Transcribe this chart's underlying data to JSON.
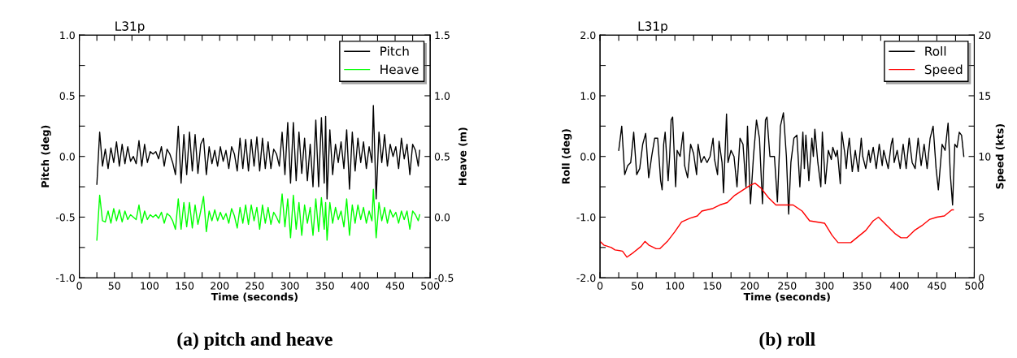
{
  "chart_data": [
    {
      "type": "line",
      "title": "L31p",
      "xlabel": "Time (seconds)",
      "ylabel": "Pitch (deg)",
      "y2label": "Heave (m)",
      "annotations": [
        "(a) pitch and heave"
      ],
      "xlim": [
        0,
        500
      ],
      "xticks": [
        0,
        {
          "value": 25,
          "label": null
        },
        50,
        {
          "value": 75,
          "label": null
        },
        100,
        {
          "value": 125,
          "label": null
        },
        150,
        {
          "value": 175,
          "label": null
        },
        200,
        {
          "value": 225,
          "label": null
        },
        250,
        {
          "value": 275,
          "label": null
        },
        300,
        {
          "value": 325,
          "label": null
        },
        350,
        {
          "value": 375,
          "label": null
        },
        400,
        {
          "value": 425,
          "label": null
        },
        450,
        {
          "value": 475,
          "label": null
        },
        500
      ],
      "ylim": [
        -1,
        1
      ],
      "yticks": [
        {
          "value": -1,
          "label": "-1.0"
        },
        {
          "value": -0.75,
          "label": null
        },
        {
          "value": -0.5,
          "label": "-0.5"
        },
        {
          "value": -0.25,
          "label": null
        },
        {
          "value": 0,
          "label": "0.0"
        },
        {
          "value": 0.25,
          "label": null
        },
        {
          "value": 0.5,
          "label": "0.5"
        },
        {
          "value": 0.75,
          "label": null
        },
        {
          "value": 1,
          "label": "1.0"
        }
      ],
      "y2lim": [
        -0.5,
        1.5
      ],
      "y2ticks": [
        {
          "value": -0.5,
          "label": "-0.5"
        },
        {
          "value": -0.25,
          "label": null
        },
        {
          "value": 0,
          "label": "0.0"
        },
        {
          "value": 0.25,
          "label": null
        },
        {
          "value": 0.5,
          "label": "0.5"
        },
        {
          "value": 0.75,
          "label": null
        },
        {
          "value": 1,
          "label": "1.0"
        },
        {
          "value": 1.25,
          "label": null
        },
        {
          "value": 1.5,
          "label": "1.5"
        }
      ],
      "legend": "top right",
      "grid": false,
      "line_style": "solid",
      "marker": "none",
      "series": [
        {
          "name": "Pitch",
          "color": "#000000",
          "x": [
            25,
            29,
            33,
            37,
            41,
            45,
            49,
            53,
            57,
            61,
            65,
            69,
            73,
            77,
            81,
            85,
            89,
            93,
            97,
            101,
            105,
            109,
            113,
            117,
            121,
            125,
            129,
            133,
            137,
            141,
            145,
            149,
            153,
            157,
            161,
            165,
            169,
            173,
            177,
            181,
            185,
            189,
            193,
            197,
            201,
            205,
            209,
            213,
            217,
            221,
            225,
            229,
            233,
            237,
            241,
            245,
            249,
            253,
            257,
            261,
            265,
            269,
            273,
            277,
            281,
            285,
            289,
            293,
            297,
            301,
            305,
            309,
            313,
            317,
            321,
            325,
            329,
            333,
            337,
            341,
            345,
            349,
            351,
            353,
            357,
            361,
            365,
            369,
            373,
            377,
            381,
            385,
            389,
            393,
            397,
            401,
            405,
            409,
            413,
            417,
            419,
            423,
            427,
            431,
            435,
            439,
            443,
            447,
            451,
            455,
            459,
            463,
            467,
            471,
            475,
            479,
            483,
            485
          ],
          "values": [
            -0.23,
            0.2,
            -0.08,
            0.06,
            -0.1,
            0.07,
            -0.05,
            0.12,
            -0.08,
            0.1,
            -0.06,
            0.08,
            -0.04,
            0.0,
            -0.06,
            0.13,
            -0.08,
            0.1,
            -0.05,
            0.04,
            0.02,
            0.04,
            -0.02,
            0.08,
            -0.08,
            0.06,
            0.02,
            -0.05,
            -0.15,
            0.25,
            -0.22,
            0.18,
            -0.15,
            0.2,
            -0.12,
            0.18,
            -0.14,
            0.1,
            0.15,
            -0.15,
            0.08,
            -0.06,
            0.05,
            -0.08,
            0.08,
            -0.04,
            0.05,
            -0.1,
            0.08,
            0.02,
            -0.12,
            0.15,
            -0.1,
            0.14,
            -0.12,
            0.14,
            -0.08,
            0.16,
            -0.12,
            0.15,
            -0.1,
            0.12,
            -0.1,
            0.06,
            0.02,
            -0.08,
            0.2,
            -0.15,
            0.28,
            -0.22,
            0.28,
            -0.2,
            0.2,
            -0.14,
            0.15,
            -0.2,
            0.1,
            -0.25,
            0.3,
            -0.25,
            0.32,
            -0.22,
            0.33,
            -0.35,
            0.22,
            -0.15,
            0.1,
            -0.05,
            0.12,
            -0.1,
            0.22,
            -0.27,
            0.2,
            -0.12,
            0.15,
            -0.05,
            0.12,
            -0.1,
            0.08,
            -0.05,
            0.42,
            -0.35,
            0.2,
            -0.05,
            0.18,
            -0.08,
            0.1,
            0.0,
            0.08,
            -0.1,
            0.15,
            -0.02,
            0.1,
            -0.15,
            0.1,
            0.05,
            -0.08,
            0.05
          ]
        },
        {
          "name": "Heave",
          "color": "#00ff00",
          "axis": "y2",
          "x": [
            25,
            29,
            33,
            37,
            41,
            45,
            49,
            53,
            57,
            61,
            65,
            69,
            73,
            77,
            81,
            85,
            89,
            93,
            97,
            101,
            105,
            109,
            113,
            117,
            121,
            125,
            129,
            133,
            137,
            141,
            145,
            149,
            153,
            157,
            161,
            165,
            169,
            173,
            177,
            181,
            185,
            189,
            193,
            197,
            201,
            205,
            209,
            213,
            217,
            221,
            225,
            229,
            233,
            237,
            241,
            245,
            249,
            253,
            257,
            261,
            265,
            269,
            273,
            277,
            281,
            285,
            289,
            293,
            297,
            301,
            305,
            309,
            313,
            317,
            321,
            325,
            329,
            333,
            337,
            341,
            345,
            349,
            351,
            353,
            357,
            361,
            365,
            369,
            373,
            377,
            381,
            385,
            389,
            393,
            397,
            401,
            405,
            409,
            413,
            417,
            419,
            423,
            427,
            431,
            435,
            439,
            443,
            447,
            451,
            455,
            459,
            463,
            467,
            471,
            475,
            479,
            483,
            485
          ],
          "values": [
            -0.19,
            0.18,
            -0.03,
            -0.04,
            0.05,
            -0.05,
            0.07,
            -0.03,
            0.06,
            -0.04,
            0.05,
            -0.02,
            0.02,
            0.0,
            -0.02,
            0.1,
            -0.05,
            0.05,
            -0.02,
            0.02,
            0.0,
            0.02,
            -0.01,
            0.04,
            -0.05,
            0.03,
            0.01,
            -0.03,
            -0.1,
            0.15,
            -0.1,
            0.12,
            -0.08,
            0.12,
            -0.09,
            0.1,
            -0.06,
            0.05,
            0.17,
            -0.12,
            0.05,
            -0.03,
            0.06,
            -0.03,
            0.04,
            -0.02,
            0.03,
            -0.05,
            0.07,
            0.01,
            -0.09,
            0.08,
            -0.05,
            0.1,
            -0.06,
            0.1,
            -0.03,
            0.08,
            -0.1,
            0.1,
            -0.05,
            0.08,
            -0.06,
            0.04,
            0.0,
            -0.05,
            0.19,
            -0.08,
            0.15,
            -0.17,
            0.18,
            -0.1,
            0.12,
            -0.15,
            0.1,
            -0.05,
            0.08,
            -0.15,
            0.15,
            -0.12,
            0.16,
            -0.1,
            0.12,
            -0.19,
            0.12,
            -0.05,
            0.08,
            -0.02,
            0.05,
            -0.08,
            0.15,
            -0.15,
            0.1,
            -0.05,
            0.1,
            -0.02,
            0.08,
            -0.05,
            0.05,
            -0.03,
            0.23,
            -0.17,
            0.12,
            -0.03,
            0.08,
            -0.05,
            0.06,
            0.0,
            0.04,
            -0.05,
            0.05,
            -0.02,
            0.05,
            -0.1,
            0.05,
            0.02,
            -0.03,
            0.02
          ]
        }
      ]
    },
    {
      "type": "line",
      "title": "L31p",
      "xlabel": "Time (seconds)",
      "ylabel": "Roll (deg)",
      "y2label": "Speed (kts)",
      "annotations": [
        "(b) roll"
      ],
      "xlim": [
        0,
        500
      ],
      "xticks": [
        0,
        {
          "value": 25,
          "label": null
        },
        50,
        {
          "value": 75,
          "label": null
        },
        100,
        {
          "value": 125,
          "label": null
        },
        150,
        {
          "value": 175,
          "label": null
        },
        200,
        {
          "value": 225,
          "label": null
        },
        250,
        {
          "value": 275,
          "label": null
        },
        300,
        {
          "value": 325,
          "label": null
        },
        350,
        {
          "value": 375,
          "label": null
        },
        400,
        {
          "value": 425,
          "label": null
        },
        450,
        {
          "value": 475,
          "label": null
        },
        500
      ],
      "ylim": [
        -2,
        2
      ],
      "yticks": [
        {
          "value": -2,
          "label": "-2.0"
        },
        {
          "value": -1.5,
          "label": null
        },
        {
          "value": -1,
          "label": "-1.0"
        },
        {
          "value": -0.5,
          "label": null
        },
        {
          "value": 0,
          "label": "0.0"
        },
        {
          "value": 0.5,
          "label": null
        },
        {
          "value": 1,
          "label": "1.0"
        },
        {
          "value": 1.5,
          "label": null
        },
        {
          "value": 2,
          "label": "2.0"
        }
      ],
      "y2lim": [
        0,
        20
      ],
      "y2ticks": [
        0,
        {
          "value": 2.5,
          "label": null
        },
        5,
        {
          "value": 7.5,
          "label": null
        },
        10,
        {
          "value": 12.5,
          "label": null
        },
        15,
        {
          "value": 17.5,
          "label": null
        },
        20
      ],
      "legend": "top right",
      "grid": false,
      "line_style": "solid",
      "marker": "none",
      "series": [
        {
          "name": "Roll",
          "color": "#000000",
          "x": [
            25,
            29,
            33,
            37,
            41,
            45,
            49,
            53,
            57,
            61,
            65,
            69,
            73,
            77,
            81,
            83,
            85,
            87,
            91,
            93,
            95,
            97,
            101,
            103,
            107,
            111,
            113,
            117,
            121,
            125,
            129,
            131,
            135,
            139,
            143,
            147,
            151,
            153,
            157,
            159,
            163,
            165,
            169,
            171,
            175,
            179,
            183,
            187,
            191,
            195,
            197,
            201,
            205,
            209,
            213,
            217,
            221,
            223,
            227,
            233,
            237,
            241,
            245,
            249,
            252,
            255,
            259,
            263,
            267,
            271,
            273,
            275,
            279,
            283,
            285,
            287,
            291,
            295,
            297,
            301,
            305,
            309,
            311,
            315,
            317,
            321,
            323,
            327,
            329,
            331,
            333,
            337,
            341,
            345,
            349,
            351,
            355,
            359,
            361,
            365,
            369,
            373,
            377,
            379,
            381,
            385,
            389,
            391,
            393,
            397,
            401,
            405,
            409,
            413,
            417,
            421,
            425,
            429,
            433,
            437,
            441,
            445,
            449,
            452,
            457,
            461,
            465,
            468,
            471,
            474,
            477,
            480,
            483,
            486
          ],
          "values": [
            0.1,
            0.5,
            -0.3,
            -0.15,
            -0.1,
            0.4,
            -0.3,
            -0.2,
            0.2,
            0.38,
            -0.35,
            0.0,
            0.3,
            0.3,
            -0.4,
            -0.55,
            0.2,
            0.4,
            -0.4,
            0.0,
            0.6,
            0.65,
            -0.5,
            0.1,
            0.0,
            0.4,
            -0.15,
            -0.35,
            0.2,
            0.05,
            -0.3,
            0.2,
            -0.1,
            0.0,
            -0.1,
            0.0,
            0.3,
            -0.05,
            -0.3,
            0.25,
            -0.1,
            -0.6,
            0.7,
            -0.1,
            0.1,
            0.0,
            -0.5,
            0.3,
            0.2,
            -0.5,
            0.5,
            -0.78,
            0.0,
            0.6,
            0.3,
            -0.78,
            0.6,
            0.65,
            0.0,
            0.0,
            -0.75,
            0.5,
            0.72,
            0.0,
            -0.95,
            -0.1,
            0.3,
            0.35,
            -0.5,
            0.4,
            -0.2,
            0.35,
            -0.4,
            0.3,
            0.0,
            0.45,
            -0.1,
            -0.5,
            0.4,
            -0.45,
            0.1,
            -0.05,
            0.15,
            0.0,
            0.1,
            -0.45,
            0.4,
            0.05,
            -0.2,
            0.1,
            0.3,
            -0.25,
            0.1,
            -0.25,
            0.3,
            0.0,
            -0.2,
            0.1,
            -0.1,
            0.15,
            -0.2,
            0.2,
            -0.15,
            0.1,
            0.0,
            -0.2,
            0.2,
            0.3,
            -0.1,
            0.1,
            -0.2,
            0.2,
            -0.2,
            0.3,
            -0.1,
            -0.2,
            0.3,
            -0.15,
            0.2,
            -0.2,
            0.3,
            0.5,
            -0.2,
            -0.55,
            0.2,
            0.1,
            0.55,
            -0.3,
            -0.8,
            0.2,
            0.15,
            0.4,
            0.35,
            0.0
          ]
        },
        {
          "name": "Speed",
          "color": "#ff0000",
          "axis": "y2",
          "x": [
            0,
            5,
            15,
            20,
            30,
            36,
            45,
            55,
            60,
            65,
            75,
            80,
            90,
            100,
            109,
            120,
            130,
            136,
            150,
            160,
            170,
            180,
            190,
            200,
            207,
            215,
            225,
            235,
            250,
            258,
            270,
            280,
            290,
            300,
            310,
            318,
            335,
            345,
            355,
            365,
            372,
            385,
            395,
            402,
            410,
            420,
            430,
            440,
            450,
            460,
            470,
            472
          ],
          "values": [
            3.0,
            2.7,
            2.5,
            2.3,
            2.2,
            1.7,
            2.1,
            2.6,
            3.0,
            2.7,
            2.4,
            2.4,
            3.0,
            3.8,
            4.6,
            4.9,
            5.1,
            5.5,
            5.7,
            6.0,
            6.2,
            6.8,
            7.2,
            7.6,
            7.8,
            7.4,
            6.6,
            6.0,
            6.0,
            6.0,
            5.5,
            4.7,
            4.6,
            4.5,
            3.5,
            2.9,
            2.9,
            3.4,
            3.9,
            4.7,
            5.0,
            4.2,
            3.6,
            3.3,
            3.3,
            3.9,
            4.3,
            4.8,
            5.0,
            5.1,
            5.6,
            5.6
          ]
        }
      ]
    }
  ]
}
